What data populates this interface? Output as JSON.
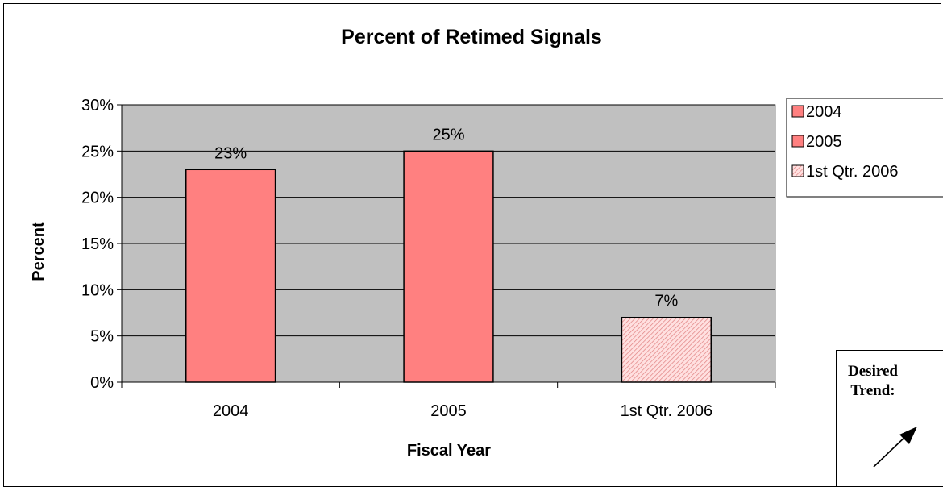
{
  "chart_data": {
    "type": "bar",
    "title": "Percent of Retimed Signals",
    "xlabel": "Fiscal Year",
    "ylabel": "Percent",
    "categories": [
      "2004",
      "2005",
      "1st Qtr. 2006"
    ],
    "values": [
      23,
      25,
      7
    ],
    "data_labels": [
      "23%",
      "25%",
      "7%"
    ],
    "ylim": [
      0,
      30
    ],
    "yticks": [
      0,
      5,
      10,
      15,
      20,
      25,
      30
    ],
    "ytick_labels": [
      "0%",
      "5%",
      "10%",
      "15%",
      "20%",
      "25%",
      "30%"
    ],
    "grid": true,
    "legend": {
      "placement": "right",
      "entries": [
        "2004",
        "2005",
        "1st Qtr. 2006"
      ]
    },
    "colors": {
      "bar": "#ff8080",
      "hatched_bar": "#ffcccc",
      "plot_background": "#c0c0c0"
    }
  },
  "annotation": {
    "label": "Desired Trend:",
    "icon": "arrow-up-right-icon"
  }
}
